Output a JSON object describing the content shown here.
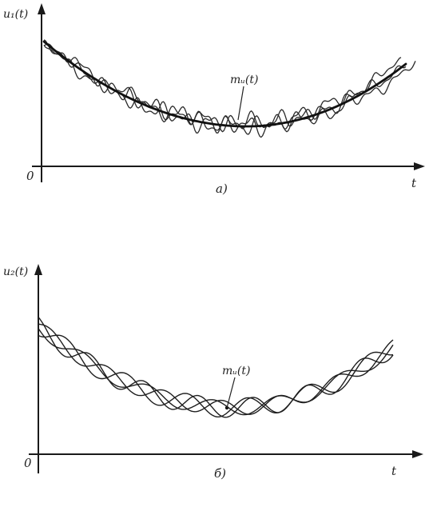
{
  "panels": [
    {
      "id": "a",
      "y_label": "u₁(t)",
      "x_label": "t",
      "origin_label": "0",
      "mean_label": "mᵤ(t)",
      "caption": "а)",
      "realization_type": "noisy",
      "realizations": 3
    },
    {
      "id": "b",
      "y_label": "u₂(t)",
      "x_label": "t",
      "origin_label": "0",
      "mean_label": "mᵤ(t)",
      "caption": "б)",
      "realization_type": "smooth",
      "realizations": 4
    }
  ]
}
